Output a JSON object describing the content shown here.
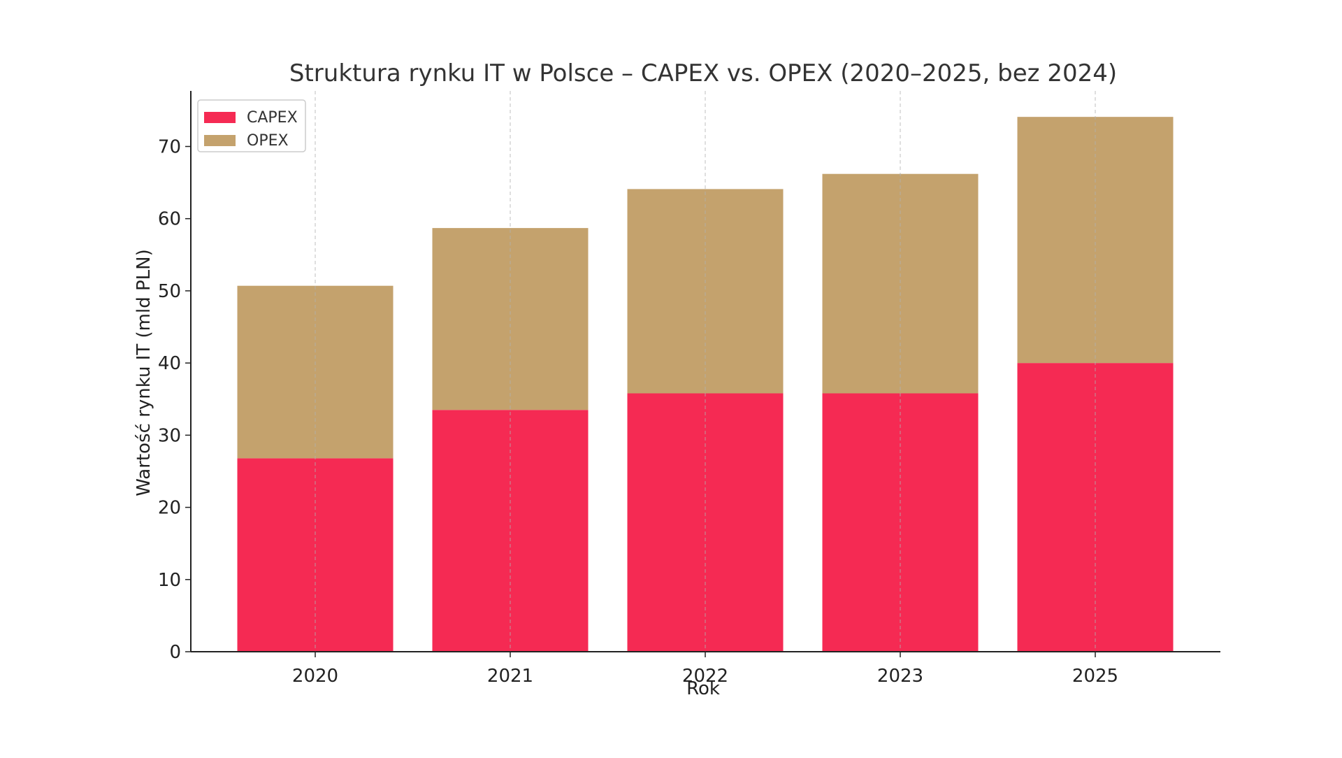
{
  "chart_data": {
    "type": "bar",
    "stacked": true,
    "title": "Struktura rynku IT w Polsce – CAPEX vs. OPEX (2020–2025, bez 2024)",
    "xlabel": "Rok",
    "ylabel": "Wartość rynku IT (mld PLN)",
    "categories": [
      "2020",
      "2021",
      "2022",
      "2023",
      "2025"
    ],
    "series": [
      {
        "name": "CAPEX",
        "color": "#f52a53",
        "values": [
          26.8,
          33.5,
          35.8,
          35.8,
          40.0
        ]
      },
      {
        "name": "OPEX",
        "color": "#c4a26d",
        "values": [
          23.9,
          25.2,
          28.3,
          30.4,
          34.1
        ]
      }
    ],
    "totals": [
      50.7,
      58.7,
      64.1,
      66.2,
      74.1
    ],
    "ylim": [
      0,
      77.7
    ],
    "yticks": [
      0,
      10,
      20,
      30,
      40,
      50,
      60,
      70
    ],
    "grid": {
      "x": true,
      "y": false
    },
    "legend": {
      "position": "top-left"
    }
  }
}
